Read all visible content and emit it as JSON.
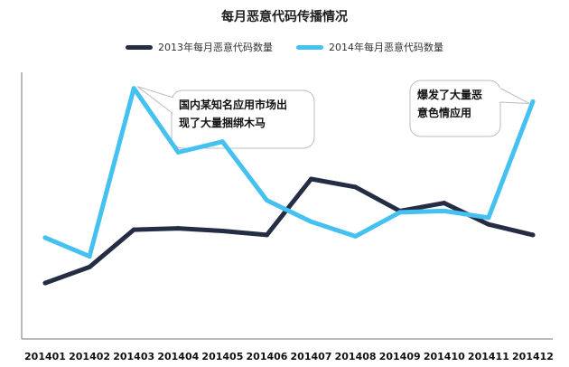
{
  "colors": {
    "series_2013": "#252d44",
    "series_2014": "#44c1f1",
    "axis": "#777777"
  },
  "chart_data": {
    "type": "line",
    "title": "每月恶意代码传播情况",
    "categories": [
      "201401",
      "201402",
      "201403",
      "201404",
      "201405",
      "201406",
      "201407",
      "201408",
      "201409",
      "201410",
      "201411",
      "201412"
    ],
    "series": [
      {
        "name": "2013年每月恶意代码数量",
        "values": [
          21,
          27,
          41,
          41.5,
          40.5,
          39,
          60,
          57,
          48,
          51,
          43,
          39
        ]
      },
      {
        "name": "2014年每月恶意代码数量",
        "values": [
          38,
          31,
          94,
          70,
          74,
          52,
          44,
          38.5,
          47.5,
          48,
          45.5,
          89
        ]
      }
    ],
    "ylim": [
      0,
      100
    ],
    "grid": false,
    "legend_position": "top",
    "annotations": [
      {
        "text_line1": "国内某知名应用市场出",
        "text_line2": "现了大量捆绑木马",
        "target_category": "201403",
        "target_series": 1
      },
      {
        "text_line1": "爆发了大量恶",
        "text_line2": "意色情应用",
        "target_category": "201412",
        "target_series": 1
      }
    ]
  }
}
